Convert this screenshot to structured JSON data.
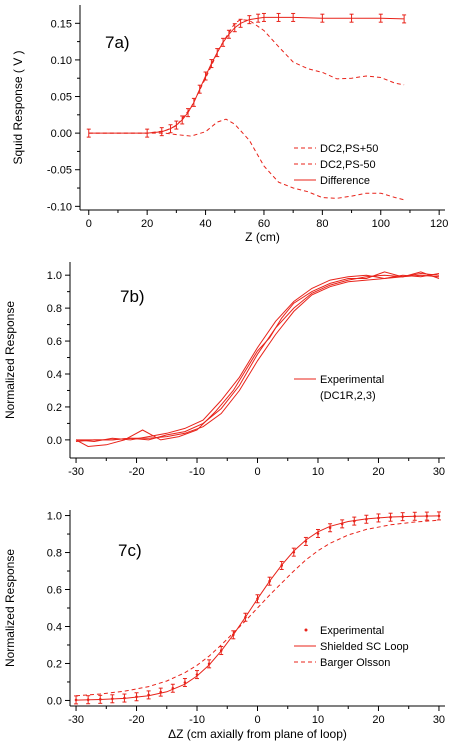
{
  "colors": {
    "series": "#e8231a",
    "axis": "#000000"
  },
  "chart_data": [
    {
      "type": "line",
      "panel_label": "7a)",
      "xlabel": "Z  (cm)",
      "ylabel": "Squid Response  ( V )",
      "xlim": [
        -3,
        122
      ],
      "ylim": [
        -0.105,
        0.175
      ],
      "xticks": [
        0,
        20,
        40,
        60,
        80,
        100,
        120
      ],
      "yticks": [
        -0.1,
        -0.05,
        0.0,
        0.05,
        0.1,
        0.15
      ],
      "ytick_labels": [
        "-0.10",
        "-0.05",
        "0.00",
        "0.05",
        "0.10",
        "0.15"
      ],
      "legend": {
        "placement": "right",
        "entries": [
          "DC2,PS+50",
          "DC2,PS-50",
          "Difference"
        ]
      },
      "series": [
        {
          "name": "DC2,PS+50",
          "style": "dashed",
          "x": [
            0,
            20,
            26,
            30,
            35,
            40,
            45,
            50,
            52,
            55,
            60,
            65,
            70,
            75,
            80,
            85,
            90,
            95,
            100,
            105,
            108
          ],
          "y": [
            0.0,
            0.0,
            0.003,
            0.01,
            0.035,
            0.075,
            0.118,
            0.15,
            0.155,
            0.154,
            0.14,
            0.118,
            0.097,
            0.088,
            0.083,
            0.074,
            0.075,
            0.078,
            0.076,
            0.068,
            0.066
          ]
        },
        {
          "name": "DC2,PS-50",
          "style": "dashed",
          "x": [
            0,
            20,
            26,
            30,
            35,
            40,
            44,
            47,
            50,
            55,
            60,
            65,
            70,
            75,
            80,
            85,
            90,
            95,
            100,
            105,
            108
          ],
          "y": [
            0.0,
            0.0,
            0.0,
            -0.002,
            -0.004,
            0.002,
            0.015,
            0.019,
            0.012,
            -0.01,
            -0.045,
            -0.067,
            -0.075,
            -0.08,
            -0.088,
            -0.089,
            -0.086,
            -0.082,
            -0.082,
            -0.088,
            -0.091
          ]
        },
        {
          "name": "Difference",
          "style": "solid",
          "error_bars": true,
          "x": [
            0,
            20,
            25,
            28,
            30,
            32,
            34,
            36,
            38,
            40,
            42,
            44,
            46,
            48,
            50,
            52,
            55,
            58,
            60,
            65,
            70,
            80,
            90,
            100,
            108
          ],
          "y": [
            0.0,
            0.0,
            0.002,
            0.006,
            0.011,
            0.018,
            0.028,
            0.042,
            0.06,
            0.078,
            0.095,
            0.11,
            0.124,
            0.135,
            0.144,
            0.15,
            0.155,
            0.157,
            0.158,
            0.158,
            0.158,
            0.157,
            0.157,
            0.157,
            0.156
          ]
        }
      ]
    },
    {
      "type": "line",
      "panel_label": "7b)",
      "xlabel": "",
      "ylabel": "Normalized Response",
      "xlim": [
        -31,
        31
      ],
      "ylim": [
        -0.11,
        1.08
      ],
      "xticks": [
        -30,
        -20,
        -10,
        0,
        10,
        20,
        30
      ],
      "yticks": [
        0.0,
        0.2,
        0.4,
        0.6,
        0.8,
        1.0
      ],
      "ytick_labels": [
        "0.0",
        "0.2",
        "0.4",
        "0.6",
        "0.8",
        "1.0"
      ],
      "legend": {
        "placement": "right",
        "entries": [
          "Experimental",
          "(DC1R,2,3)"
        ]
      },
      "series": [
        {
          "name": "Experimental",
          "style": "solid",
          "x": [
            -30,
            -28,
            -25,
            -22,
            -19,
            -16,
            -13,
            -10,
            -7,
            -4,
            -2,
            0,
            2,
            4,
            6,
            9,
            12,
            15,
            18,
            21,
            24,
            27,
            30
          ],
          "y": [
            0.0,
            -0.04,
            -0.03,
            0.0,
            0.06,
            0.0,
            0.02,
            0.06,
            0.17,
            0.3,
            0.42,
            0.54,
            0.62,
            0.74,
            0.83,
            0.9,
            0.95,
            0.98,
            0.98,
            1.02,
            0.99,
            1.02,
            0.98
          ]
        },
        {
          "x": [
            -30,
            -27,
            -24,
            -21,
            -18,
            -15,
            -12,
            -9,
            -6,
            -3,
            0,
            3,
            6,
            9,
            12,
            15,
            18,
            21,
            24,
            27,
            30
          ],
          "y": [
            -0.01,
            0.0,
            0.0,
            0.01,
            0.0,
            0.03,
            0.05,
            0.1,
            0.19,
            0.33,
            0.52,
            0.68,
            0.8,
            0.89,
            0.94,
            0.97,
            0.99,
            1.0,
            0.99,
            1.01,
            1.0
          ],
          "style": "solid"
        },
        {
          "x": [
            -30,
            -27,
            -24,
            -21,
            -18,
            -15,
            -12,
            -9,
            -6,
            -3,
            0,
            3,
            6,
            9,
            12,
            15,
            18,
            21,
            24,
            27,
            30
          ],
          "y": [
            0.0,
            -0.01,
            0.01,
            0.0,
            0.02,
            0.04,
            0.07,
            0.12,
            0.24,
            0.38,
            0.56,
            0.72,
            0.84,
            0.92,
            0.97,
            0.99,
            1.0,
            0.98,
            1.0,
            0.99,
            1.01
          ],
          "style": "solid"
        },
        {
          "x": [
            -30,
            -27,
            -24,
            -21,
            -18,
            -15,
            -12,
            -9,
            -6,
            -3,
            0,
            3,
            6,
            9,
            12,
            15,
            18,
            21,
            24,
            27,
            30
          ],
          "y": [
            0.0,
            0.0,
            0.0,
            0.01,
            0.01,
            0.02,
            0.04,
            0.08,
            0.16,
            0.3,
            0.48,
            0.64,
            0.78,
            0.88,
            0.93,
            0.96,
            0.97,
            0.98,
            0.99,
            1.0,
            0.99
          ],
          "style": "solid"
        }
      ]
    },
    {
      "type": "line",
      "panel_label": "7c)",
      "xlabel": "ΔZ  (cm axially from plane of loop)",
      "ylabel": "Normalized Response",
      "xlim": [
        -31,
        31
      ],
      "ylim": [
        -0.03,
        1.03
      ],
      "xticks": [
        -30,
        -20,
        -10,
        0,
        10,
        20,
        30
      ],
      "yticks": [
        0.0,
        0.2,
        0.4,
        0.6,
        0.8,
        1.0
      ],
      "ytick_labels": [
        "0.0",
        "0.2",
        "0.4",
        "0.6",
        "0.8",
        "1.0"
      ],
      "legend": {
        "placement": "bottom-right",
        "entries": [
          "Experimental",
          "Shielded SC Loop",
          "Barger Olsson"
        ]
      },
      "series": [
        {
          "name": "Experimental",
          "style": "points",
          "error_bars": true,
          "x": [
            -30,
            -28,
            -26,
            -24,
            -22,
            -20,
            -18,
            -16,
            -14,
            -12,
            -10,
            -8,
            -6,
            -4,
            -2,
            0,
            2,
            4,
            6,
            8,
            10,
            12,
            14,
            16,
            18,
            20,
            22,
            24,
            26,
            28,
            30
          ],
          "y": [
            0.003,
            0.004,
            0.006,
            0.009,
            0.013,
            0.02,
            0.03,
            0.045,
            0.066,
            0.097,
            0.14,
            0.198,
            0.27,
            0.355,
            0.45,
            0.55,
            0.645,
            0.73,
            0.802,
            0.86,
            0.903,
            0.934,
            0.955,
            0.97,
            0.98,
            0.987,
            0.991,
            0.994,
            0.996,
            0.997,
            0.998
          ]
        },
        {
          "name": "Shielded SC Loop",
          "style": "solid",
          "x": [
            -30,
            -26,
            -22,
            -18,
            -15,
            -12,
            -10,
            -8,
            -6,
            -4,
            -2,
            0,
            2,
            4,
            6,
            8,
            10,
            12,
            15,
            18,
            22,
            26,
            30
          ],
          "y": [
            0.002,
            0.005,
            0.011,
            0.025,
            0.047,
            0.088,
            0.132,
            0.192,
            0.268,
            0.355,
            0.45,
            0.55,
            0.645,
            0.732,
            0.808,
            0.868,
            0.912,
            0.942,
            0.968,
            0.982,
            0.992,
            0.996,
            0.998
          ]
        },
        {
          "name": "Barger Olsson",
          "style": "dashed",
          "x": [
            -30,
            -26,
            -22,
            -18,
            -15,
            -12,
            -10,
            -8,
            -6,
            -4,
            -2,
            0,
            2,
            4,
            6,
            8,
            10,
            12,
            15,
            18,
            22,
            26,
            30
          ],
          "y": [
            0.025,
            0.035,
            0.05,
            0.075,
            0.105,
            0.15,
            0.19,
            0.24,
            0.3,
            0.365,
            0.43,
            0.5,
            0.57,
            0.635,
            0.7,
            0.76,
            0.81,
            0.85,
            0.895,
            0.925,
            0.95,
            0.965,
            0.975
          ]
        }
      ]
    }
  ]
}
